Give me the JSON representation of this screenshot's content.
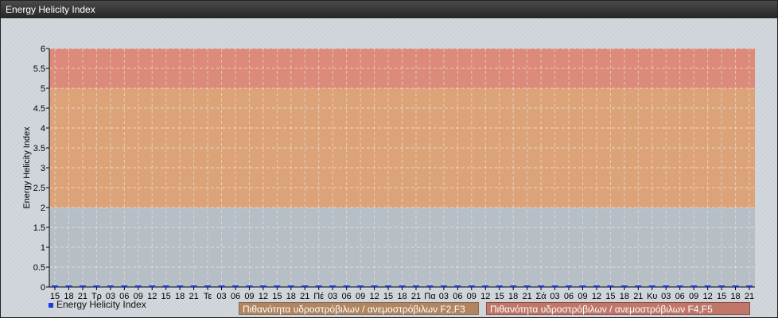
{
  "window": {
    "title": "Energy Helicity Index"
  },
  "chart_data": {
    "type": "line",
    "title": "",
    "ylabel": "Energy Helicity Index",
    "xlabel": "",
    "ylim": [
      0,
      6
    ],
    "yticks": [
      "0",
      "0.5",
      "1",
      "1.5",
      "2",
      "2.5",
      "3",
      "3.5",
      "4",
      "4.5",
      "5",
      "5.5",
      "6"
    ],
    "grid": true,
    "categories": [
      "15",
      "18",
      "21",
      "Τρ",
      "03",
      "06",
      "09",
      "12",
      "15",
      "18",
      "21",
      "Τε",
      "03",
      "06",
      "09",
      "12",
      "15",
      "18",
      "21",
      "Πέ",
      "03",
      "06",
      "09",
      "12",
      "15",
      "18",
      "21",
      "Πα",
      "03",
      "06",
      "09",
      "12",
      "15",
      "18",
      "21",
      "Σά",
      "03",
      "06",
      "09",
      "12",
      "15",
      "18",
      "21",
      "Κυ",
      "03",
      "06",
      "09",
      "12",
      "15",
      "18",
      "21"
    ],
    "series": [
      {
        "name": "Energy Helicity Index",
        "color": "#1a3be0",
        "values": [
          0,
          0,
          0,
          0,
          0,
          0,
          0,
          0,
          0,
          0,
          0,
          0,
          0,
          0,
          0,
          0,
          0,
          0,
          0,
          0,
          0,
          0,
          0,
          0,
          0,
          0,
          0,
          0,
          0,
          0,
          0,
          0,
          0,
          0,
          0,
          0,
          0,
          0,
          0,
          0,
          0,
          0,
          0,
          0,
          0,
          0,
          0,
          0,
          0,
          0,
          0
        ]
      }
    ],
    "bands": [
      {
        "from": 2,
        "to": 5,
        "color": "#e0a070",
        "label": "Πιθανότητα υδροστρόβιλων / ανεμοστρόβιλων F2,F3"
      },
      {
        "from": 5,
        "to": 6,
        "color": "#e08470",
        "label": "Πιθανότητα υδροστρόβιλων / ανεμοστρόβιλων F4,F5"
      }
    ],
    "legend": "bottom-left"
  }
}
